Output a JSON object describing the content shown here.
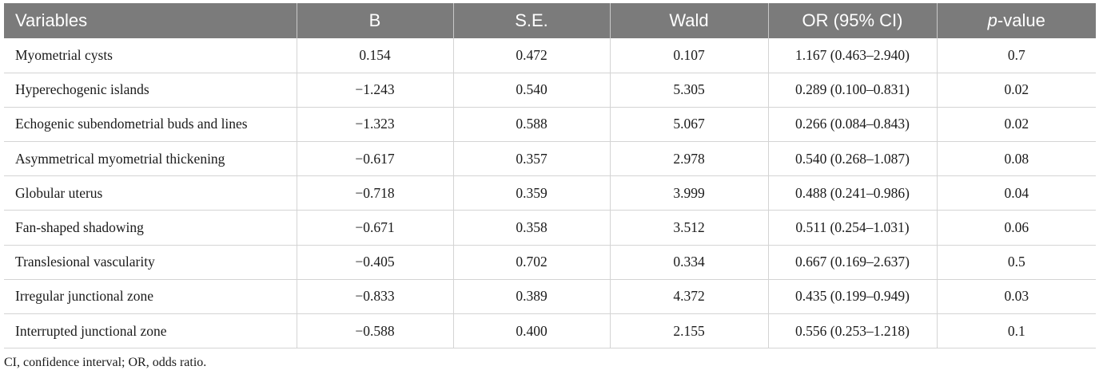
{
  "table": {
    "headers": {
      "variables": "Variables",
      "b": "B",
      "se": "S.E.",
      "wald": "Wald",
      "or": "OR (95% CI)",
      "p_italic": "p",
      "p_rest": "-value"
    },
    "rows": [
      {
        "variable": "Myometrial cysts",
        "b": "0.154",
        "se": "0.472",
        "wald": "0.107",
        "or": "1.167 (0.463–2.940)",
        "p": "0.7"
      },
      {
        "variable": "Hyperechogenic islands",
        "b": "−1.243",
        "se": "0.540",
        "wald": "5.305",
        "or": "0.289 (0.100–0.831)",
        "p": "0.02"
      },
      {
        "variable": "Echogenic subendometrial buds and lines",
        "b": "−1.323",
        "se": "0.588",
        "wald": "5.067",
        "or": "0.266 (0.084–0.843)",
        "p": "0.02"
      },
      {
        "variable": "Asymmetrical myometrial thickening",
        "b": "−0.617",
        "se": "0.357",
        "wald": "2.978",
        "or": "0.540 (0.268–1.087)",
        "p": "0.08"
      },
      {
        "variable": "Globular uterus",
        "b": "−0.718",
        "se": "0.359",
        "wald": "3.999",
        "or": "0.488 (0.241–0.986)",
        "p": "0.04"
      },
      {
        "variable": "Fan-shaped shadowing",
        "b": "−0.671",
        "se": "0.358",
        "wald": "3.512",
        "or": "0.511 (0.254–1.031)",
        "p": "0.06"
      },
      {
        "variable": "Translesional vascularity",
        "b": "−0.405",
        "se": "0.702",
        "wald": "0.334",
        "or": "0.667 (0.169–2.637)",
        "p": "0.5"
      },
      {
        "variable": "Irregular junctional zone",
        "b": "−0.833",
        "se": "0.389",
        "wald": "4.372",
        "or": "0.435 (0.199–0.949)",
        "p": "0.03"
      },
      {
        "variable": "Interrupted junctional zone",
        "b": "−0.588",
        "se": "0.400",
        "wald": "2.155",
        "or": "0.556 (0.253–1.218)",
        "p": "0.1"
      }
    ]
  },
  "footnote": "CI, confidence interval; OR, odds ratio."
}
